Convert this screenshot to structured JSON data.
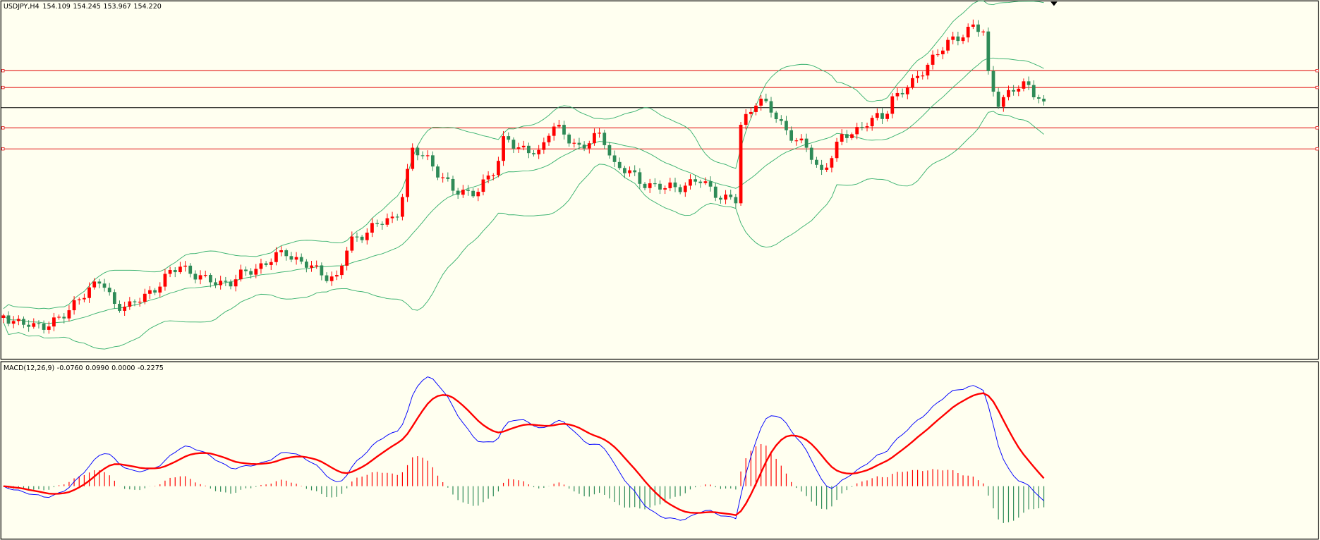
{
  "header": {
    "symbol": "USDJPY,H4",
    "values": [
      "154.109",
      "154.245",
      "153.967",
      "154.220"
    ]
  },
  "indicator": {
    "name": "MACD(12,26,9)",
    "values": [
      "-0.0760",
      "0.0990",
      "0.0000",
      "-0.2275"
    ]
  }
}
